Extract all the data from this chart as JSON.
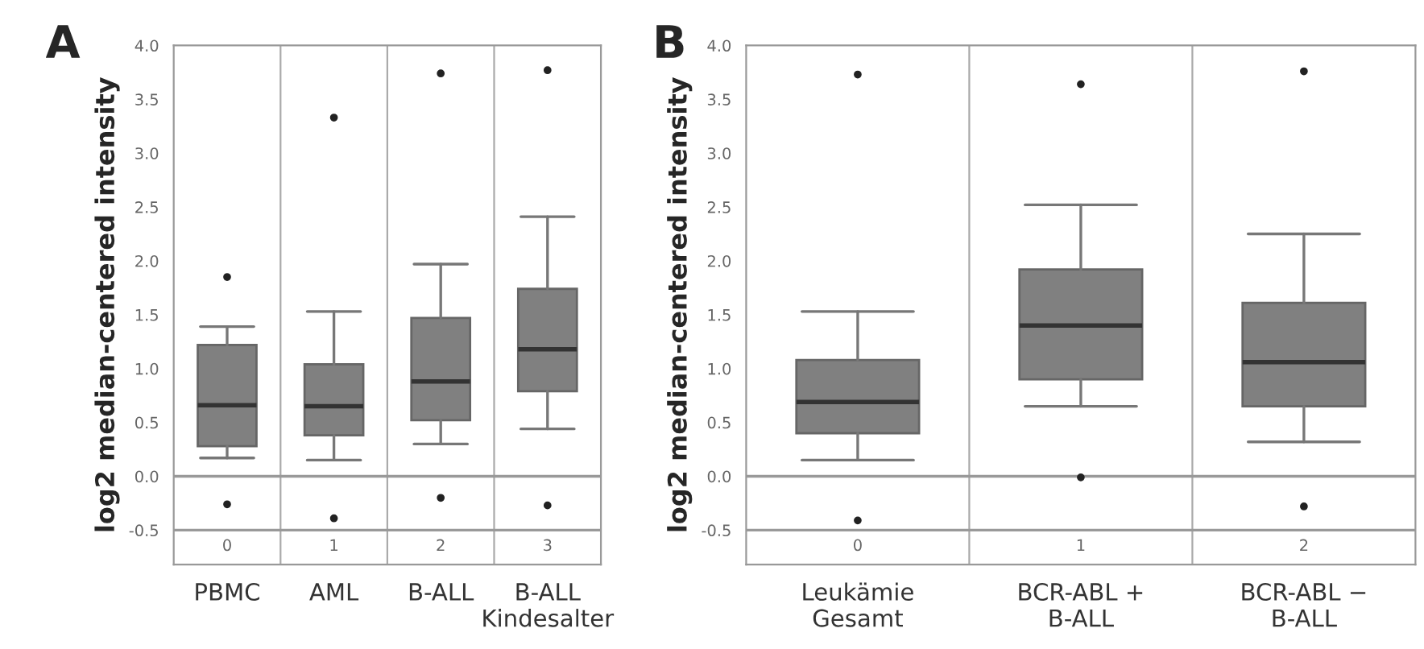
{
  "chart_data": [
    {
      "type": "box",
      "title": "A",
      "ylabel": "log2 median-centered intensity",
      "categories": [
        "PBMC",
        "AML",
        "B-ALL",
        "B-ALL\nKindesalter"
      ],
      "boxes": [
        {
          "low": 0.17,
          "q1": 0.28,
          "median": 0.66,
          "q3": 1.22,
          "high": 1.39,
          "outliers": [
            1.85,
            -0.26
          ]
        },
        {
          "low": 0.15,
          "q1": 0.38,
          "median": 0.65,
          "q3": 1.04,
          "high": 1.53,
          "outliers": [
            3.33,
            -0.39
          ]
        },
        {
          "low": 0.3,
          "q1": 0.52,
          "median": 0.88,
          "q3": 1.47,
          "high": 1.97,
          "outliers": [
            3.74,
            -0.2
          ]
        },
        {
          "low": 0.44,
          "q1": 0.79,
          "median": 1.18,
          "q3": 1.74,
          "high": 2.41,
          "outliers": [
            3.77,
            -0.27
          ]
        }
      ],
      "color": "#808080",
      "ylim": [
        -0.82,
        4.0
      ],
      "yticks": [
        {
          "value": -0.5,
          "label": "-0.5"
        },
        {
          "value": 0,
          "label": "0.0"
        },
        {
          "value": 0.5,
          "label": "0.5"
        },
        {
          "value": 1,
          "label": "1.0"
        },
        {
          "value": 1.5,
          "label": "1.5"
        },
        {
          "value": 2,
          "label": "2.0"
        },
        {
          "value": 2.5,
          "label": "2.5"
        },
        {
          "value": 3,
          "label": "3.0"
        },
        {
          "value": 3.5,
          "label": "3.5"
        },
        {
          "value": 4,
          "label": "4.0"
        }
      ],
      "ref_lines": [
        {
          "axis": "y",
          "value": 0
        },
        {
          "axis": "y",
          "value": -0.5
        }
      ],
      "annotations": [
        "0",
        "1",
        "2",
        "3"
      ],
      "grid": false
    },
    {
      "type": "box",
      "title": "B",
      "ylabel": "log2 median-centered intensity",
      "categories": [
        "Leukämie\nGesamt",
        "BCR-ABL +\nB-ALL",
        "BCR-ABL −\nB-ALL"
      ],
      "boxes": [
        {
          "low": 0.15,
          "q1": 0.4,
          "median": 0.69,
          "q3": 1.08,
          "high": 1.53,
          "outliers": [
            3.73,
            -0.41
          ]
        },
        {
          "low": 0.65,
          "q1": 0.9,
          "median": 1.4,
          "q3": 1.92,
          "high": 2.52,
          "outliers": [
            3.64,
            -0.01
          ]
        },
        {
          "low": 0.32,
          "q1": 0.65,
          "median": 1.06,
          "q3": 1.61,
          "high": 2.25,
          "outliers": [
            3.76,
            -0.28
          ]
        }
      ],
      "color": "#808080",
      "ylim": [
        -0.82,
        4.0
      ],
      "yticks": [
        {
          "value": -0.5,
          "label": "-0.5"
        },
        {
          "value": 0,
          "label": "0.0"
        },
        {
          "value": 0.5,
          "label": "0.5"
        },
        {
          "value": 1,
          "label": "1.0"
        },
        {
          "value": 1.5,
          "label": "1.5"
        },
        {
          "value": 2,
          "label": "2.0"
        },
        {
          "value": 2.5,
          "label": "2.5"
        },
        {
          "value": 3,
          "label": "3.0"
        },
        {
          "value": 3.5,
          "label": "3.5"
        },
        {
          "value": 4,
          "label": "4.0"
        }
      ],
      "ref_lines": [
        {
          "axis": "y",
          "value": 0
        },
        {
          "axis": "y",
          "value": -0.5
        }
      ],
      "annotations": [
        "0",
        "1",
        "2"
      ],
      "grid": false
    }
  ]
}
